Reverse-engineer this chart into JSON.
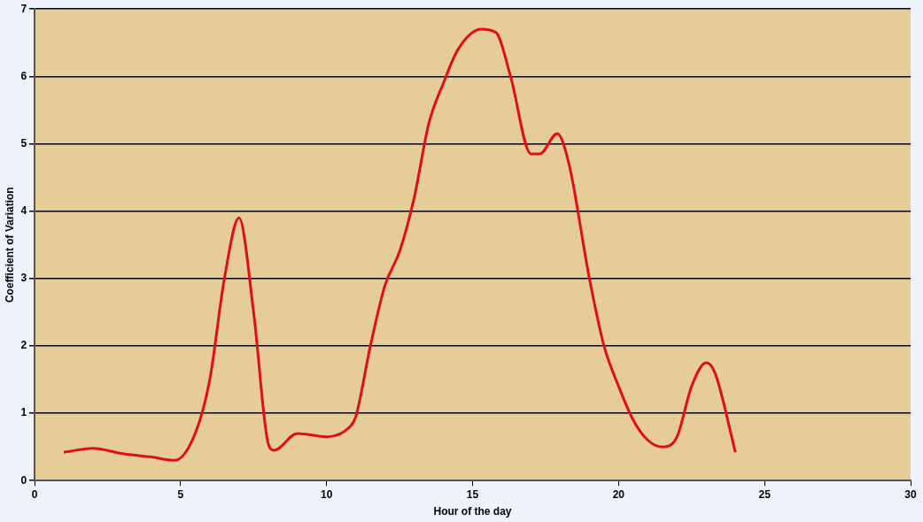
{
  "chart_data": {
    "type": "line",
    "xlabel": "Hour of the day",
    "ylabel": "Coefficient of Variation",
    "xlim": [
      0,
      30
    ],
    "xticks": [
      0,
      5,
      10,
      15,
      20,
      25,
      30
    ],
    "ylim": [
      0,
      7
    ],
    "yticks": [
      0,
      1,
      2,
      3,
      4,
      5,
      6,
      7
    ],
    "grid": "y",
    "legend": false,
    "marker": "none",
    "line_style": "solid",
    "series": [
      {
        "color": "#e01010",
        "x": [
          1,
          2,
          3,
          4,
          4.8,
          5.5,
          6,
          6.5,
          7,
          7.5,
          8,
          8.2,
          9,
          10,
          10.8,
          11,
          11.5,
          12,
          12.5,
          13,
          13.5,
          14,
          14.5,
          15.3,
          15.8,
          16.3,
          17,
          17.3,
          17.9,
          18.3,
          19,
          19.5,
          20,
          20.5,
          21,
          21.5,
          22,
          22.5,
          23,
          23.3,
          24
        ],
        "values": [
          0.42,
          0.48,
          0.4,
          0.35,
          0.3,
          0.7,
          1.5,
          3.0,
          3.9,
          2.5,
          0.55,
          0.45,
          0.7,
          0.65,
          0.8,
          0.95,
          2.0,
          2.9,
          3.4,
          4.2,
          5.3,
          5.9,
          6.4,
          6.7,
          6.65,
          6.0,
          4.85,
          4.85,
          5.15,
          4.7,
          3.0,
          2.0,
          1.4,
          0.9,
          0.6,
          0.5,
          0.65,
          1.4,
          1.75,
          1.6,
          0.42
        ]
      }
    ]
  }
}
